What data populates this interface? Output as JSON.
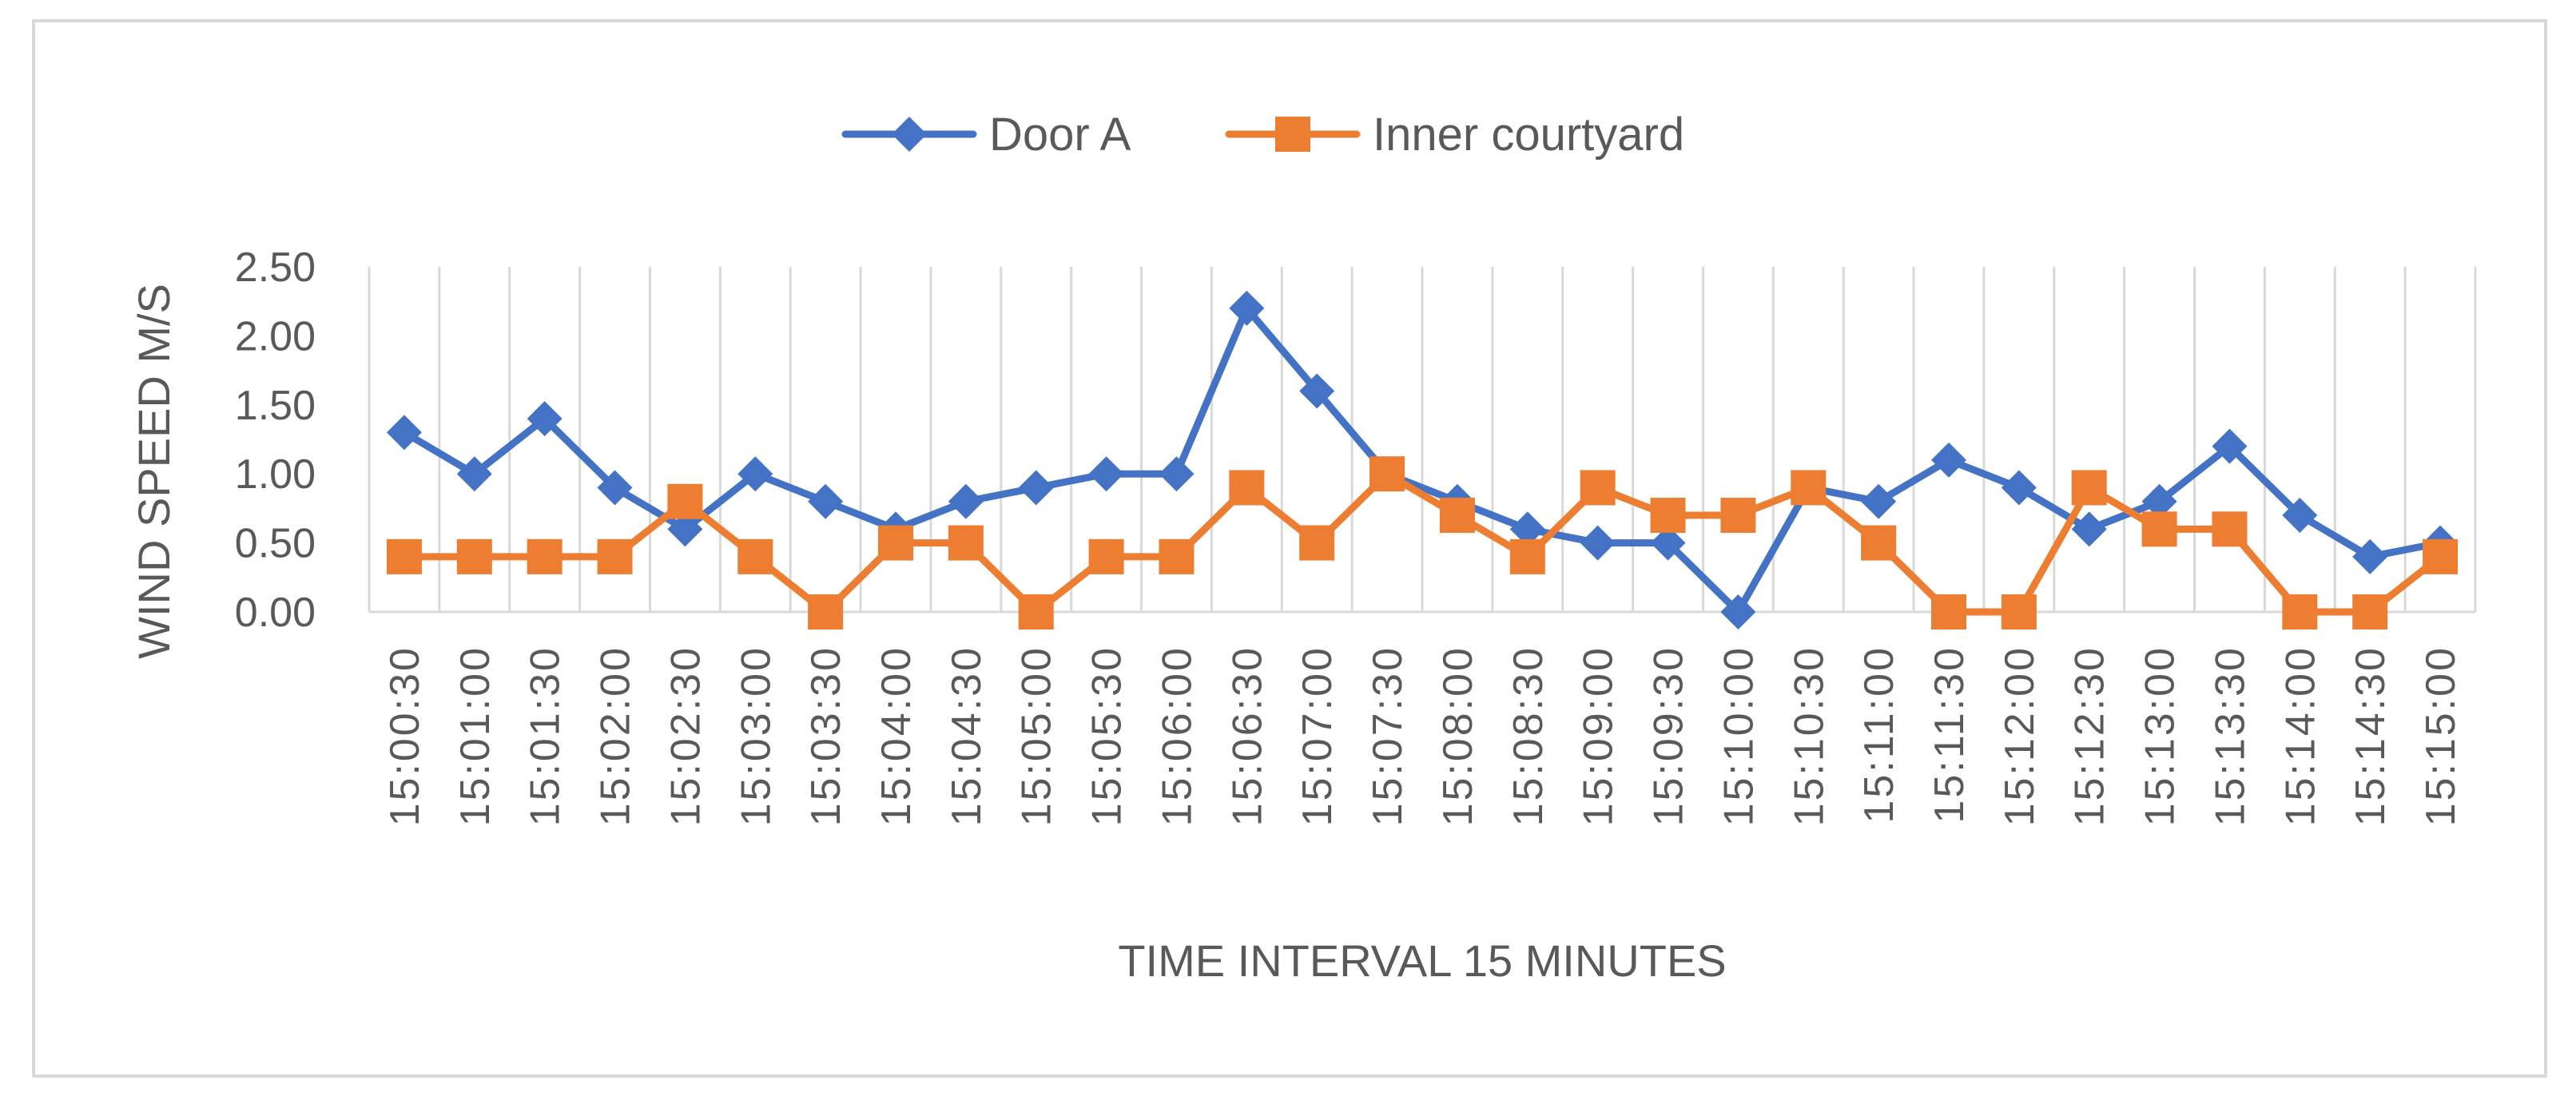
{
  "chart_data": {
    "type": "line",
    "title": "",
    "xlabel": "TIME INTERVAL 15 MINUTES",
    "ylabel": "WIND SPEED M/S",
    "ylim": [
      0,
      2.5
    ],
    "yticks": [
      "0.00",
      "0.50",
      "1.00",
      "1.50",
      "2.00",
      "2.50"
    ],
    "grid": "vertical",
    "legend_position": "top",
    "categories": [
      "15:00:30",
      "15:01:00",
      "15:01:30",
      "15:02:00",
      "15:02:30",
      "15:03:00",
      "15:03:30",
      "15:04:00",
      "15:04:30",
      "15:05:00",
      "15:05:30",
      "15:06:00",
      "15:06:30",
      "15:07:00",
      "15:07:30",
      "15:08:00",
      "15:08:30",
      "15:09:00",
      "15:09:30",
      "15:10:00",
      "15:10:30",
      "15:11:00",
      "15:11:30",
      "15:12:00",
      "15:12:30",
      "15:13:00",
      "15:13:30",
      "15:14:00",
      "15:14:30",
      "15:15:00"
    ],
    "series": [
      {
        "name": "Door A",
        "color": "#4472c4",
        "marker": "diamond",
        "values": [
          1.3,
          1.0,
          1.4,
          0.9,
          0.6,
          1.0,
          0.8,
          0.6,
          0.8,
          0.9,
          1.0,
          1.0,
          2.2,
          1.6,
          1.0,
          0.8,
          0.6,
          0.5,
          0.5,
          0.0,
          0.9,
          0.8,
          1.1,
          0.9,
          0.6,
          0.8,
          1.2,
          0.7,
          0.4,
          0.5
        ]
      },
      {
        "name": "Inner courtyard",
        "color": "#ed7d31",
        "marker": "square",
        "values": [
          0.4,
          0.4,
          0.4,
          0.4,
          0.8,
          0.4,
          0.0,
          0.5,
          0.5,
          0.0,
          0.4,
          0.4,
          0.9,
          0.5,
          1.0,
          0.7,
          0.4,
          0.9,
          0.7,
          0.7,
          0.9,
          0.5,
          0.0,
          0.0,
          0.9,
          0.6,
          0.6,
          0.0,
          0.0,
          0.4
        ]
      }
    ]
  }
}
